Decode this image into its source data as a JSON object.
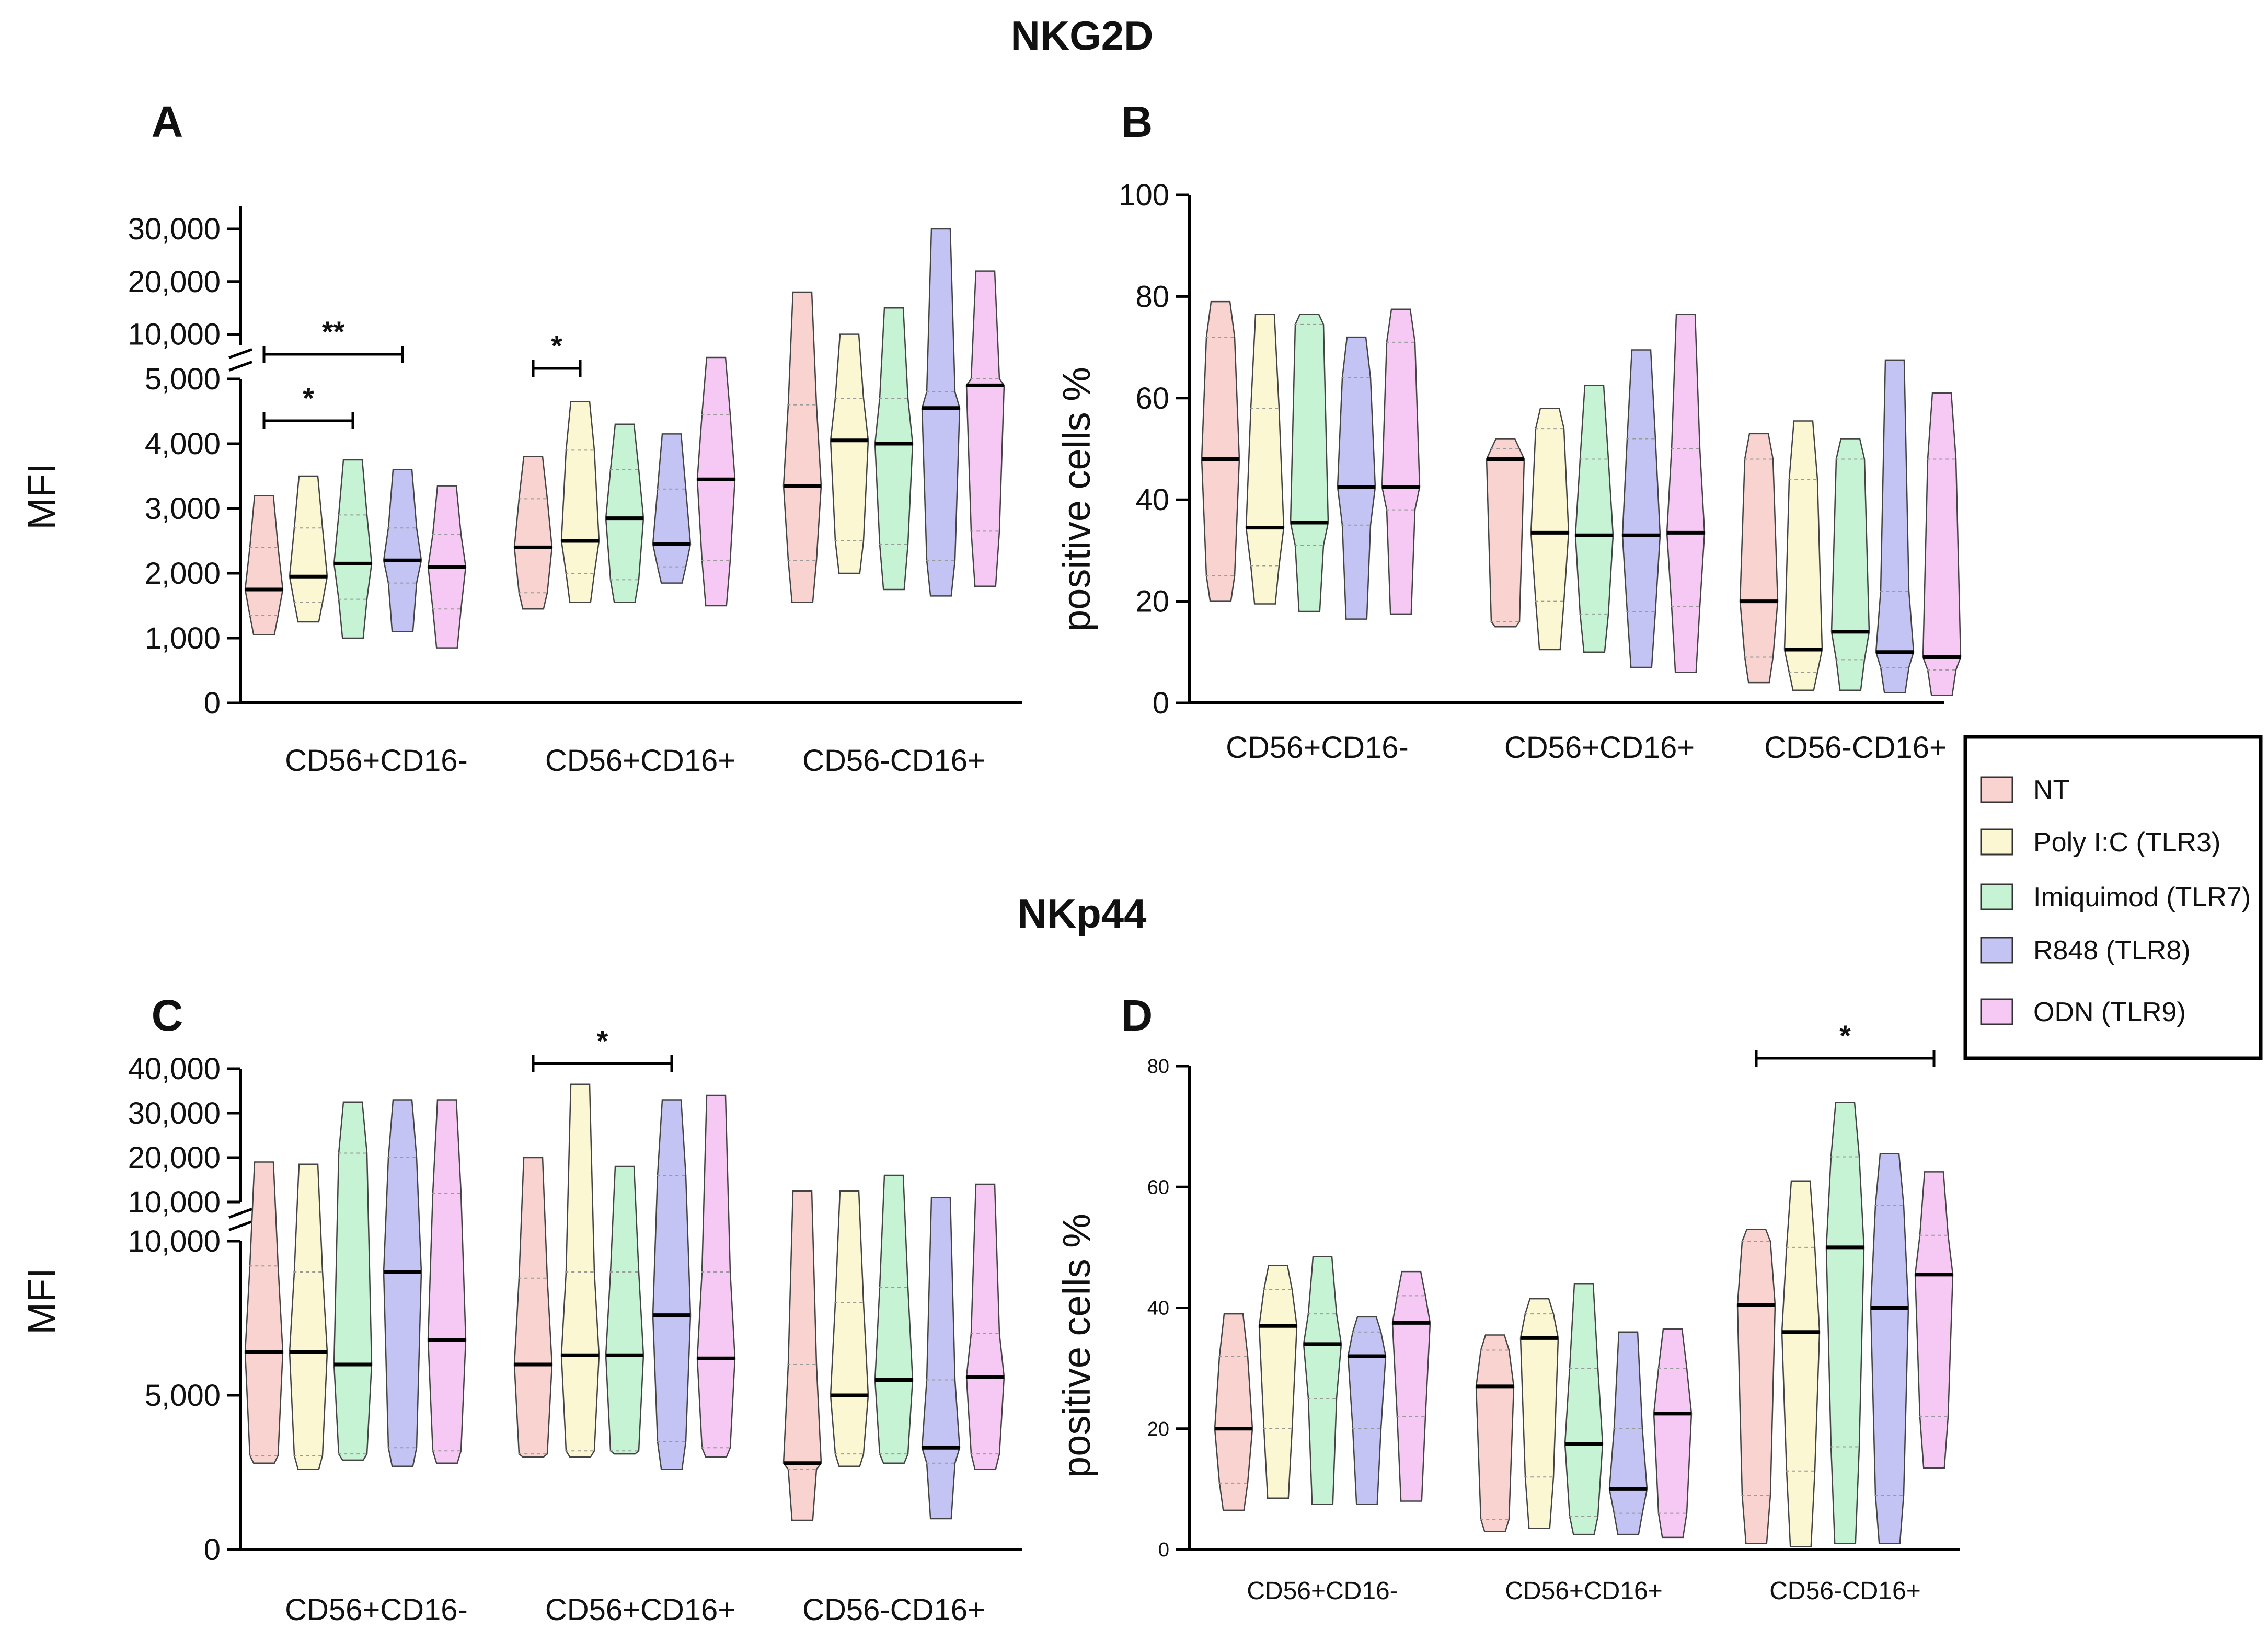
{
  "colors": {
    "NT": "#f9d3cf",
    "Poly I:C (TLR3)": "#fbf7d2",
    "Imiquimod (TLR7)": "#c7f3d5",
    "R848 (TLR8)": "#c4c4f4",
    "ODN (TLR9)": "#f6c9f5",
    "median": "#000000",
    "quartile": "#999999"
  },
  "titles": {
    "top": "NKG2D",
    "bottom": "NKp44"
  },
  "legend": [
    "NT",
    "Poly I:C (TLR3)",
    "Imiquimod (TLR7)",
    "R848 (TLR8)",
    "ODN (TLR9)"
  ],
  "chart_data": [
    {
      "panel": "A",
      "type": "violin",
      "ylabel": "MFI",
      "y_axis_break": true,
      "ylim_lower": [
        0,
        5000
      ],
      "ylim_upper": [
        5000,
        30000
      ],
      "yticks_lower": [
        "0",
        "1,000",
        "2,000",
        "3,000",
        "4,000",
        "5,000"
      ],
      "yticks_upper": [
        "10,000",
        "20,000",
        "30,000"
      ],
      "categories": [
        "CD56+CD16-",
        "CD56+CD16+",
        "CD56-CD16+"
      ],
      "series": [
        {
          "name": "NT",
          "min": [
            1050,
            1450,
            1550
          ],
          "q1": [
            1350,
            1700,
            2200
          ],
          "median": [
            1750,
            2400,
            3350
          ],
          "q3": [
            2400,
            3150,
            4600
          ],
          "max": [
            3200,
            3800,
            18000
          ]
        },
        {
          "name": "Poly I:C (TLR3)",
          "min": [
            1250,
            1550,
            2000
          ],
          "q1": [
            1550,
            2000,
            2500
          ],
          "median": [
            1950,
            2500,
            4050
          ],
          "q3": [
            2700,
            3900,
            4700
          ],
          "max": [
            3500,
            4650,
            10000
          ]
        },
        {
          "name": "Imiquimod (TLR7)",
          "min": [
            1000,
            1550,
            1750
          ],
          "q1": [
            1600,
            1900,
            2450
          ],
          "median": [
            2150,
            2850,
            4000
          ],
          "q3": [
            2900,
            3600,
            4700
          ],
          "max": [
            3750,
            4300,
            15000
          ]
        },
        {
          "name": "R848 (TLR8)",
          "min": [
            1100,
            1850,
            1650
          ],
          "q1": [
            1850,
            2100,
            2200
          ],
          "median": [
            2200,
            2450,
            4550
          ],
          "q3": [
            2700,
            3300,
            4800
          ],
          "max": [
            3600,
            4150,
            30000
          ]
        },
        {
          "name": "ODN (TLR9)",
          "min": [
            850,
            1500,
            1800
          ],
          "q1": [
            1450,
            2200,
            2650
          ],
          "median": [
            2100,
            3450,
            4900
          ],
          "q3": [
            2600,
            4450,
            5000
          ],
          "max": [
            3350,
            5600,
            22000
          ]
        }
      ],
      "significance": [
        {
          "category": "CD56+CD16-",
          "from": "NT",
          "to": "R848 (TLR8)",
          "label": "**"
        },
        {
          "category": "CD56+CD16-",
          "from": "NT",
          "to": "Imiquimod (TLR7)",
          "label": "*"
        },
        {
          "category": "CD56+CD16+",
          "from": "NT",
          "to": "Poly I:C (TLR3)",
          "label": "*"
        }
      ]
    },
    {
      "panel": "B",
      "type": "violin",
      "ylabel": "positive cells %",
      "ylim": [
        0,
        100
      ],
      "yticks": [
        "0",
        "20",
        "40",
        "60",
        "80",
        "100"
      ],
      "categories": [
        "CD56+CD16-",
        "CD56+CD16+",
        "CD56-CD16+"
      ],
      "series": [
        {
          "name": "NT",
          "min": [
            20,
            15,
            4
          ],
          "q1": [
            25,
            16,
            9
          ],
          "median": [
            48,
            48,
            20
          ],
          "q3": [
            72,
            50,
            48
          ],
          "max": [
            79,
            52,
            53
          ]
        },
        {
          "name": "Poly I:C (TLR3)",
          "min": [
            19.5,
            10.5,
            2.5
          ],
          "q1": [
            27,
            20,
            6
          ],
          "median": [
            34.5,
            33.5,
            10.5
          ],
          "q3": [
            58,
            54,
            44
          ],
          "max": [
            76.5,
            58,
            55.5
          ]
        },
        {
          "name": "Imiquimod (TLR7)",
          "min": [
            18,
            10,
            2.5
          ],
          "q1": [
            31,
            17.5,
            8.5
          ],
          "median": [
            35.5,
            33,
            14
          ],
          "q3": [
            74.5,
            48,
            48
          ],
          "max": [
            76.5,
            62.5,
            52
          ]
        },
        {
          "name": "R848 (TLR8)",
          "min": [
            16.5,
            7,
            2
          ],
          "q1": [
            35,
            18,
            7
          ],
          "median": [
            42.5,
            33,
            10
          ],
          "q3": [
            64,
            52,
            22
          ],
          "max": [
            72,
            69.5,
            67.5
          ]
        },
        {
          "name": "ODN (TLR9)",
          "min": [
            17.5,
            6,
            1.5
          ],
          "q1": [
            38,
            19,
            6.5
          ],
          "median": [
            42.5,
            33.5,
            9
          ],
          "q3": [
            71,
            50,
            48
          ],
          "max": [
            77.5,
            76.5,
            61
          ]
        }
      ]
    },
    {
      "panel": "C",
      "type": "violin",
      "ylabel": "MFI",
      "y_axis_break": true,
      "ylim_lower": [
        0,
        10000
      ],
      "ylim_upper": [
        10000,
        40000
      ],
      "yticks_lower": [
        "0",
        "5,000",
        "10,000"
      ],
      "yticks_upper": [
        "10,000",
        "20,000",
        "30,000",
        "40,000"
      ],
      "categories": [
        "CD56+CD16-",
        "CD56+CD16+",
        "CD56-CD16+"
      ],
      "series": [
        {
          "name": "NT",
          "min": [
            2800,
            3000,
            950
          ],
          "q1": [
            3050,
            3100,
            2600
          ],
          "median": [
            6400,
            6000,
            2800
          ],
          "q3": [
            9200,
            8800,
            6000
          ],
          "max": [
            19000,
            20000,
            12500
          ]
        },
        {
          "name": "Poly I:C (TLR3)",
          "min": [
            2600,
            3000,
            2700
          ],
          "q1": [
            3050,
            3200,
            3100
          ],
          "median": [
            6400,
            6300,
            5000
          ],
          "q3": [
            9000,
            9000,
            8000
          ],
          "max": [
            18500,
            36500,
            12500
          ]
        },
        {
          "name": "Imiquimod (TLR7)",
          "min": [
            2900,
            3100,
            2800
          ],
          "q1": [
            3100,
            3200,
            3100
          ],
          "median": [
            6000,
            6300,
            5500
          ],
          "q3": [
            21000,
            9000,
            8500
          ],
          "max": [
            32500,
            18000,
            16000
          ]
        },
        {
          "name": "R848 (TLR8)",
          "min": [
            2700,
            2600,
            1000
          ],
          "q1": [
            3300,
            3500,
            2800
          ],
          "median": [
            9000,
            7600,
            3300
          ],
          "q3": [
            20000,
            16000,
            5500
          ],
          "max": [
            33000,
            33000,
            11000
          ]
        },
        {
          "name": "ODN (TLR9)",
          "min": [
            2800,
            3000,
            2600
          ],
          "q1": [
            3200,
            3300,
            3100
          ],
          "median": [
            6800,
            6200,
            5600
          ],
          "q3": [
            12000,
            9000,
            7000
          ],
          "max": [
            33000,
            34000,
            14000
          ]
        }
      ],
      "significance": [
        {
          "category": "CD56+CD16+",
          "from": "NT",
          "to": "R848 (TLR8)",
          "label": "*"
        }
      ]
    },
    {
      "panel": "D",
      "type": "violin",
      "ylabel": "positive cells %",
      "ylim": [
        0,
        80
      ],
      "yticks": [
        "0",
        "20",
        "40",
        "60",
        "80"
      ],
      "categories": [
        "CD56+CD16-",
        "CD56+CD16+",
        "CD56-CD16+"
      ],
      "series": [
        {
          "name": "NT",
          "min": [
            6.5,
            3,
            1
          ],
          "q1": [
            11,
            5,
            9
          ],
          "median": [
            20,
            27,
            40.5
          ],
          "q3": [
            32,
            33,
            51
          ],
          "max": [
            39,
            35.5,
            53
          ]
        },
        {
          "name": "Poly I:C (TLR3)",
          "min": [
            8.5,
            3.5,
            0.5
          ],
          "q1": [
            20,
            12,
            13
          ],
          "median": [
            37,
            35,
            36
          ],
          "q3": [
            43,
            39,
            50
          ],
          "max": [
            47,
            41.5,
            61
          ]
        },
        {
          "name": "Imiquimod (TLR7)",
          "min": [
            7.5,
            2.5,
            1
          ],
          "q1": [
            25,
            5.5,
            17
          ],
          "median": [
            34,
            17.5,
            50
          ],
          "q3": [
            39,
            30,
            65
          ],
          "max": [
            48.5,
            44,
            74
          ]
        },
        {
          "name": "R848 (TLR8)",
          "min": [
            7.5,
            2.5,
            1
          ],
          "q1": [
            20,
            6,
            9
          ],
          "median": [
            32,
            10,
            40
          ],
          "q3": [
            36,
            20,
            57
          ],
          "max": [
            38.5,
            36,
            65.5
          ]
        },
        {
          "name": "ODN (TLR9)",
          "min": [
            8,
            2,
            13.5
          ],
          "q1": [
            22,
            6,
            22
          ],
          "median": [
            37.5,
            22.5,
            45.5
          ],
          "q3": [
            42,
            30,
            52
          ],
          "max": [
            46,
            36.5,
            62.5
          ]
        }
      ],
      "significance": [
        {
          "category": "CD56-CD16+",
          "from": "NT",
          "to": "ODN (TLR9)",
          "label": "*"
        }
      ]
    }
  ]
}
